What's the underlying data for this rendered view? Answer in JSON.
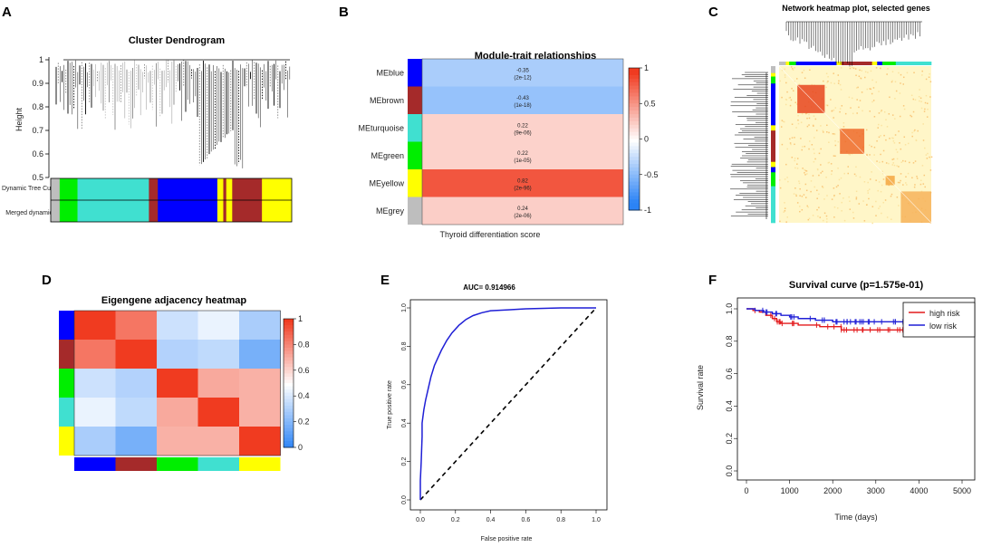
{
  "panels": {
    "a": {
      "label": "A",
      "title": "Cluster Dendrogram",
      "ylabel": "Height",
      "row1": "Dynamic Tree Cut",
      "row2": "Merged dynamic"
    },
    "b": {
      "label": "B",
      "title": "Module-trait relationships",
      "xlabel": "Thyroid differentiation score"
    },
    "c": {
      "label": "C",
      "title": "Network heatmap plot, selected genes"
    },
    "d": {
      "label": "D",
      "title": "Eigengene adjacency heatmap"
    },
    "e": {
      "label": "E",
      "title": "AUC= 0.914966"
    },
    "f": {
      "label": "F",
      "title": "Survival curve (p=1.575e-01)"
    }
  },
  "colors": {
    "blue": "#0000ff",
    "brown": "#a52a2a",
    "turquoise": "#40e0d0",
    "green": "#00ee00",
    "yellow": "#ffff00",
    "grey": "#bebebe",
    "high": "#e31a1c",
    "low": "#1f1fd6"
  },
  "chart_data": [
    {
      "id": "A",
      "type": "dendrogram",
      "title": "Cluster Dendrogram",
      "ylabel": "Height",
      "ylim": [
        0.5,
        1.0
      ],
      "yticks": [
        0.5,
        0.6,
        0.7,
        0.8,
        0.9,
        1.0
      ],
      "color_rows": [
        {
          "label": "Dynamic Tree Cut",
          "segments": [
            {
              "color": "grey",
              "width": 3
            },
            {
              "color": "green",
              "width": 6
            },
            {
              "color": "turquoise",
              "width": 24
            },
            {
              "color": "brown",
              "width": 3
            },
            {
              "color": "blue",
              "width": 20
            },
            {
              "color": "yellow",
              "width": 2
            },
            {
              "color": "brown",
              "width": 1
            },
            {
              "color": "yellow",
              "width": 2
            },
            {
              "color": "brown",
              "width": 10
            },
            {
              "color": "yellow",
              "width": 10
            }
          ]
        },
        {
          "label": "Merged dynamic",
          "segments": [
            {
              "color": "grey",
              "width": 3
            },
            {
              "color": "green",
              "width": 6
            },
            {
              "color": "turquoise",
              "width": 24
            },
            {
              "color": "brown",
              "width": 3
            },
            {
              "color": "blue",
              "width": 20
            },
            {
              "color": "yellow",
              "width": 2
            },
            {
              "color": "brown",
              "width": 1
            },
            {
              "color": "yellow",
              "width": 2
            },
            {
              "color": "brown",
              "width": 10
            },
            {
              "color": "yellow",
              "width": 10
            }
          ]
        }
      ]
    },
    {
      "id": "B",
      "type": "heatmap",
      "title": "Module-trait relationships",
      "xlabel": "Thyroid differentiation score",
      "rows": [
        {
          "name": "MEblue",
          "color": "blue",
          "value": -0.35,
          "p": "(2e-12)"
        },
        {
          "name": "MEbrown",
          "color": "brown",
          "value": -0.43,
          "p": "(1e-18)"
        },
        {
          "name": "MEturquoise",
          "color": "turquoise",
          "value": 0.22,
          "p": "(9e-06)"
        },
        {
          "name": "MEgreen",
          "color": "green",
          "value": 0.22,
          "p": "(1e-05)"
        },
        {
          "name": "MEyellow",
          "color": "yellow",
          "value": 0.82,
          "p": "(2e-96)"
        },
        {
          "name": "MEgrey",
          "color": "grey",
          "value": 0.24,
          "p": "(2e-06)"
        }
      ],
      "labels": [
        "-0.35",
        "-0.43",
        "0.22",
        "0.22",
        "0.82",
        "0.24"
      ],
      "colorbar_ticks": [
        "1",
        "0.5",
        "0",
        "-0.5",
        "-1"
      ],
      "range": [
        -1,
        1
      ]
    },
    {
      "id": "C",
      "type": "heatmap",
      "title": "Network heatmap plot, selected genes",
      "modules": [
        {
          "color": "grey",
          "size": 4
        },
        {
          "color": "yellow",
          "size": 2
        },
        {
          "color": "green",
          "size": 4
        },
        {
          "color": "blue",
          "size": 24
        },
        {
          "color": "yellow",
          "size": 3
        },
        {
          "color": "brown",
          "size": 18
        },
        {
          "color": "yellow",
          "size": 3
        },
        {
          "color": "blue",
          "size": 3
        },
        {
          "color": "green",
          "size": 8
        },
        {
          "color": "turquoise",
          "size": 21
        }
      ]
    },
    {
      "id": "D",
      "type": "heatmap",
      "title": "Eigengene adjacency heatmap",
      "modules": [
        "blue",
        "brown",
        "green",
        "turquoise",
        "yellow"
      ],
      "matrix": [
        [
          1.0,
          0.85,
          0.38,
          0.45,
          0.3
        ],
        [
          0.85,
          1.0,
          0.32,
          0.35,
          0.18
        ],
        [
          0.38,
          0.32,
          1.0,
          0.72,
          0.7
        ],
        [
          0.45,
          0.35,
          0.72,
          1.0,
          0.7
        ],
        [
          0.3,
          0.18,
          0.7,
          0.7,
          1.0
        ]
      ],
      "colorbar_ticks": [
        "1",
        "0.8",
        "0.6",
        "0.4",
        "0.2",
        "0"
      ],
      "range": [
        0,
        1
      ]
    },
    {
      "id": "E",
      "type": "line",
      "title": "AUC= 0.914966",
      "xlabel": "False positive rate",
      "ylabel": "True positive rate",
      "xlim": [
        0,
        1
      ],
      "ylim": [
        0,
        1
      ],
      "xtick_labels": [
        "0.0",
        "0.2",
        "0.4",
        "0.6",
        "0.8",
        "1.0"
      ],
      "ytick_labels": [
        "0.0",
        "0.2",
        "0.4",
        "0.6",
        "0.8",
        "1.0"
      ],
      "x": [
        0,
        0.0,
        0.005,
        0.01,
        0.01,
        0.02,
        0.03,
        0.04,
        0.05,
        0.06,
        0.08,
        0.1,
        0.12,
        0.15,
        0.18,
        0.22,
        0.26,
        0.3,
        0.35,
        0.4,
        0.5,
        0.6,
        0.8,
        1.0
      ],
      "y": [
        0,
        0.1,
        0.2,
        0.33,
        0.4,
        0.47,
        0.52,
        0.56,
        0.6,
        0.64,
        0.7,
        0.74,
        0.78,
        0.83,
        0.87,
        0.91,
        0.94,
        0.96,
        0.975,
        0.985,
        0.99,
        0.995,
        1.0,
        1.0
      ]
    },
    {
      "id": "F",
      "type": "line",
      "title": "Survival curve (p=1.575e-01)",
      "xlabel": "Time (days)",
      "ylabel": "Survival rate",
      "xlim": [
        0,
        5000
      ],
      "ylim": [
        0,
        1
      ],
      "xtick_labels": [
        "0",
        "1000",
        "2000",
        "3000",
        "4000",
        "5000"
      ],
      "ytick_labels": [
        "0.0",
        "0.2",
        "0.4",
        "0.6",
        "0.8",
        "1.0"
      ],
      "legend": [
        "high risk",
        "low risk"
      ],
      "series": [
        {
          "name": "high risk",
          "color": "high",
          "x": [
            0,
            150,
            300,
            450,
            600,
            700,
            800,
            1000,
            1200,
            1400,
            1700,
            2100,
            2200,
            2600,
            3000,
            4900
          ],
          "y": [
            1.0,
            0.99,
            0.98,
            0.96,
            0.94,
            0.92,
            0.91,
            0.91,
            0.9,
            0.9,
            0.89,
            0.89,
            0.87,
            0.87,
            0.87,
            0.87
          ]
        },
        {
          "name": "low risk",
          "color": "low",
          "x": [
            0,
            200,
            400,
            600,
            800,
            1000,
            1200,
            1600,
            2000,
            2500,
            3000,
            4900
          ],
          "y": [
            1.0,
            0.99,
            0.98,
            0.97,
            0.96,
            0.95,
            0.94,
            0.93,
            0.92,
            0.92,
            0.92,
            0.92
          ]
        }
      ]
    }
  ]
}
